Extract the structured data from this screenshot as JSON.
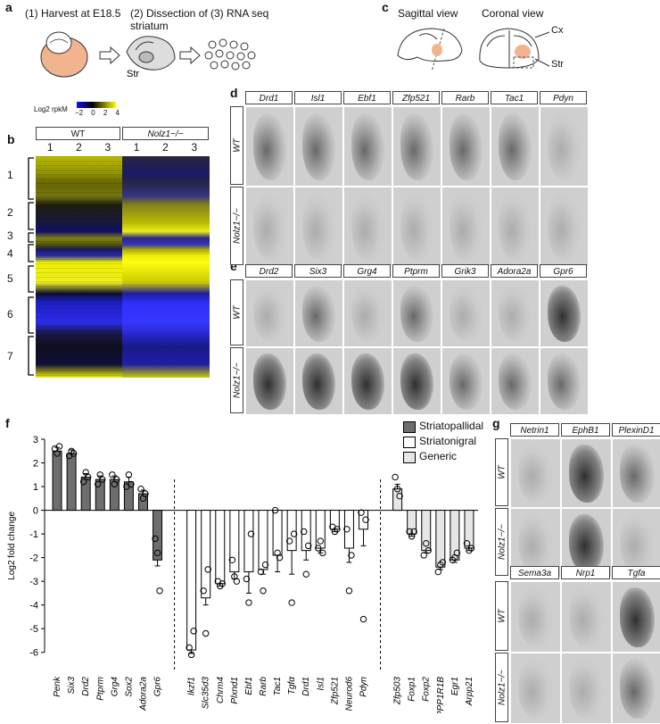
{
  "panels": {
    "a": "a",
    "b": "b",
    "c": "c",
    "d": "d",
    "e": "e",
    "f": "f",
    "g": "g"
  },
  "a": {
    "step1": "(1) Harvest at E18.5",
    "step2": "(2) Dissection of striatum",
    "step3": "(3) RNA seq",
    "str": "Str"
  },
  "c": {
    "sagittal": "Sagittal view",
    "coronal": "Coronal view",
    "cx": "Cx",
    "str": "Str"
  },
  "b": {
    "scale_title": "Log2 rpkM",
    "scale_ticks": [
      "−2",
      "0",
      "2",
      "4"
    ],
    "groups": [
      "WT",
      "Nolz1−/−"
    ],
    "replicates": [
      "1",
      "2",
      "3",
      "1",
      "2",
      "3"
    ],
    "clusters": [
      "1",
      "2",
      "3",
      "4",
      "5",
      "6",
      "7"
    ]
  },
  "d": {
    "genes": [
      "Drd1",
      "Isl1",
      "Ebf1",
      "Zfp521",
      "Rarb",
      "Tac1",
      "Pdyn"
    ],
    "rows": [
      "WT",
      "Nolz1−/−"
    ]
  },
  "e": {
    "genes": [
      "Drd2",
      "Six3",
      "Grg4",
      "Ptprm",
      "Grik3",
      "Adora2a",
      "Gpr6"
    ],
    "rows": [
      "WT",
      "Nolz1−/−"
    ]
  },
  "g": {
    "genes_top": [
      "Netrin1",
      "EphB1",
      "PlexinD1"
    ],
    "genes_bottom": [
      "Sema3a",
      "Nrp1",
      "Tgfa"
    ],
    "rows": [
      "WT",
      "Nolz1−/−"
    ]
  },
  "chart_data": {
    "type": "bar",
    "ylabel": "Log2 fold change",
    "ylim": [
      -6.5,
      3
    ],
    "yticks": [
      3,
      2,
      1,
      0,
      -1,
      -2,
      -3,
      -4,
      -5,
      -6
    ],
    "legend": [
      "Striatopallidal",
      "Striatonigral",
      "Generic"
    ],
    "legend_placement": "top-right",
    "colors": {
      "Striatopallidal": "#6e6e6e",
      "Striatonigral": "#ffffff",
      "Generic": "#e6e6e6"
    },
    "categories": [
      "Penk",
      "Six3",
      "Drd2",
      "Ptprm",
      "Grg4",
      "Sox2",
      "Adora2a",
      "Gpr6",
      "Ikzf1",
      "Slc35d3",
      "Chrm4",
      "Plxnd1",
      "Ebf1",
      "Rarb",
      "Tac1",
      "Tgfα",
      "Drd1",
      "Isl1",
      "Zfp521",
      "Neurod6",
      "Pdyn",
      "Zfp503",
      "Foxp1",
      "Foxp2",
      "PPP1R1B",
      "Egr1",
      "Arpp21"
    ],
    "groups": [
      "Striatopallidal",
      "Striatopallidal",
      "Striatopallidal",
      "Striatopallidal",
      "Striatopallidal",
      "Striatopallidal",
      "Striatopallidal",
      "Striatopallidal",
      "Striatonigral",
      "Striatonigral",
      "Striatonigral",
      "Striatonigral",
      "Striatonigral",
      "Striatonigral",
      "Striatonigral",
      "Striatonigral",
      "Striatonigral",
      "Striatonigral",
      "Striatonigral",
      "Striatonigral",
      "Striatonigral",
      "Generic",
      "Generic",
      "Generic",
      "Generic",
      "Generic",
      "Generic"
    ],
    "values": [
      2.5,
      2.4,
      1.4,
      1.3,
      1.3,
      1.2,
      0.7,
      -2.1,
      -5.9,
      -3.7,
      -3.1,
      -2.6,
      -2.6,
      -2.5,
      -1.9,
      -1.7,
      -1.7,
      -1.6,
      -0.8,
      -1.6,
      -0.8,
      0.9,
      -1.0,
      -1.7,
      -2.4,
      -2.1,
      -1.6
    ],
    "errors": [
      0.15,
      0.15,
      0.15,
      0.15,
      0.15,
      0.2,
      0.15,
      0.25,
      0.15,
      0.3,
      0.1,
      0.3,
      0.9,
      0.2,
      0.7,
      1.0,
      0.4,
      0.2,
      0.1,
      0.6,
      0.7,
      0.2,
      0.1,
      0.1,
      0.1,
      0.1,
      0.1
    ],
    "points": [
      [
        2.6,
        2.4,
        2.7
      ],
      [
        2.3,
        2.5,
        2.4
      ],
      [
        1.2,
        1.6,
        1.4
      ],
      [
        1.1,
        1.5,
        1.3
      ],
      [
        1.5,
        1.1,
        1.3
      ],
      [
        1.0,
        1.5,
        1.1
      ],
      [
        0.9,
        0.5,
        0.7
      ],
      [
        -1.2,
        -1.8,
        -3.4
      ],
      [
        -5.8,
        -6.1,
        -5.1
      ],
      [
        -3.4,
        -5.2,
        -2.5
      ],
      [
        -3.0,
        -3.2,
        -3.1
      ],
      [
        -2.1,
        -2.8,
        -3.0
      ],
      [
        -2.9,
        -3.9,
        -1.0
      ],
      [
        -2.6,
        -3.4,
        -2.3
      ],
      [
        0.0,
        -1.8,
        -2.0
      ],
      [
        -1.3,
        -3.9,
        -1.0
      ],
      [
        -0.9,
        -2.7,
        -1.5
      ],
      [
        -1.6,
        -1.3,
        -1.8
      ],
      [
        -0.7,
        -0.9,
        -0.8
      ],
      [
        -0.8,
        -3.4,
        -1.9
      ],
      [
        -0.1,
        -4.6,
        -0.4
      ],
      [
        1.4,
        0.9,
        0.6
      ],
      [
        -0.9,
        -1.1,
        -0.9
      ],
      [
        -1.9,
        -1.4,
        -1.7
      ],
      [
        -2.6,
        -2.3,
        -2.2
      ],
      [
        -2.1,
        -2.0,
        -1.8
      ],
      [
        -1.4,
        -1.7,
        -1.6
      ]
    ]
  }
}
